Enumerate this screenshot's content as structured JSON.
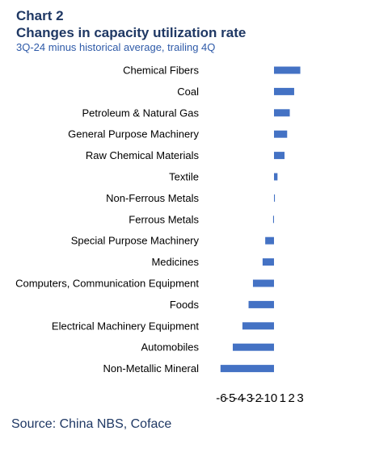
{
  "header": {
    "chart_label": "Chart 2",
    "title": "Changes in capacity utilization rate",
    "subtitle": "3Q-24 minus historical average, trailing 4Q"
  },
  "footer": {
    "source": "Source: China NBS, Coface"
  },
  "colors": {
    "bar": "#4472c4",
    "title": "#1f3864",
    "subtitle": "#2e5aa8",
    "text": "#000000"
  },
  "chart_data": {
    "type": "bar",
    "orientation": "horizontal",
    "categories": [
      "Chemical Fibers",
      "Coal",
      "Petroleum & Natural Gas",
      "General Purpose Machinery",
      "Raw Chemical Materials",
      "Textile",
      "Non-Ferrous Metals",
      "Ferrous Metals",
      "Special Purpose Machinery",
      "Medicines",
      "Computers, Communication Equipment",
      "Foods",
      "Electrical Machinery Equipment",
      "Automobiles",
      "Non-Metallic Mineral"
    ],
    "values": [
      3.0,
      2.3,
      1.8,
      1.5,
      1.2,
      0.4,
      0.1,
      -0.1,
      -1.0,
      -1.3,
      -2.4,
      -2.9,
      -3.6,
      -4.7,
      -6.1
    ],
    "xlim": [
      -6,
      3
    ],
    "xticks": [
      -6,
      -5,
      -4,
      -3,
      -2,
      -1,
      0,
      1,
      2,
      3
    ],
    "xtick_labels": [
      "-6",
      "-5",
      "-4",
      "-3",
      "-2",
      "-1",
      "0",
      "1",
      "2",
      "3"
    ],
    "grid": false,
    "legend": "none"
  }
}
